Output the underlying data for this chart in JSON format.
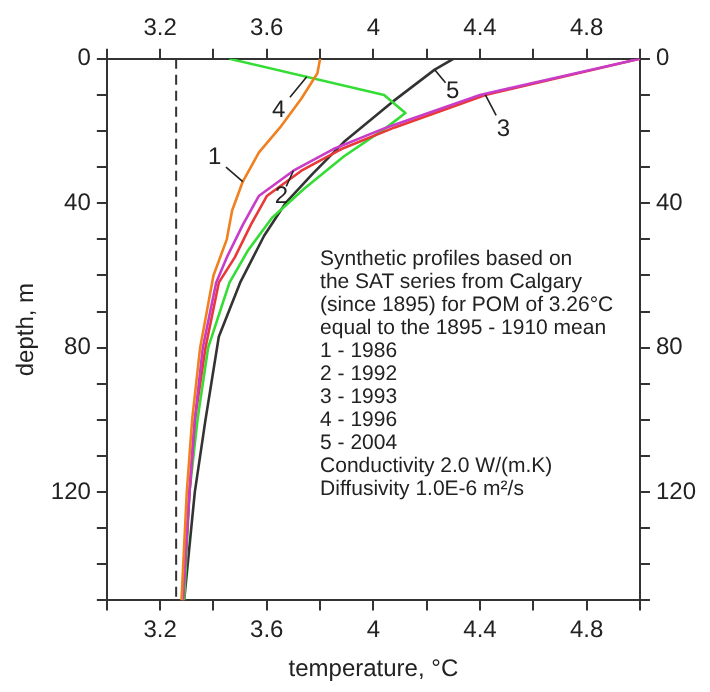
{
  "chart_data": {
    "type": "line",
    "xlabel": "temperature, °C",
    "ylabel": "depth, m",
    "xlim": [
      3.0,
      5.0
    ],
    "xticks": [
      {
        "value": 3.0,
        "label": null
      },
      3.2,
      {
        "value": 3.4,
        "label": null
      },
      3.6,
      {
        "value": 3.8,
        "label": null
      },
      4,
      {
        "value": 4.2,
        "label": null
      },
      4.4,
      {
        "value": 4.6,
        "label": null
      },
      4.8,
      {
        "value": 5.0,
        "label": null
      }
    ],
    "x2lim": [
      3.0,
      5.0
    ],
    "x2ticks": [
      {
        "value": 3.0,
        "label": null
      },
      3.2,
      {
        "value": 3.4,
        "label": null
      },
      3.6,
      {
        "value": 3.8,
        "label": null
      },
      4,
      {
        "value": 4.2,
        "label": null
      },
      4.4,
      {
        "value": 4.6,
        "label": null
      },
      4.8,
      {
        "value": 5.0,
        "label": null
      }
    ],
    "ylim": [
      150,
      0
    ],
    "yticks": [
      0,
      {
        "value": 10,
        "label": null
      },
      {
        "value": 20,
        "label": null
      },
      {
        "value": 30,
        "label": null
      },
      40,
      {
        "value": 50,
        "label": null
      },
      {
        "value": 60,
        "label": null
      },
      {
        "value": 70,
        "label": null
      },
      80,
      {
        "value": 90,
        "label": null
      },
      {
        "value": 100,
        "label": null
      },
      {
        "value": 110,
        "label": null
      },
      120,
      {
        "value": 130,
        "label": null
      },
      {
        "value": 140,
        "label": null
      },
      {
        "value": 150,
        "label": null
      }
    ],
    "y2lim": [
      150,
      0
    ],
    "y2ticks": [
      0,
      {
        "value": 10,
        "label": null
      },
      {
        "value": 20,
        "label": null
      },
      {
        "value": 30,
        "label": null
      },
      40,
      {
        "value": 50,
        "label": null
      },
      {
        "value": 60,
        "label": null
      },
      {
        "value": 70,
        "label": null
      },
      80,
      {
        "value": 90,
        "label": null
      },
      {
        "value": 100,
        "label": null
      },
      {
        "value": 110,
        "label": null
      },
      120,
      {
        "value": 130,
        "label": null
      },
      {
        "value": 140,
        "label": null
      },
      {
        "value": 150,
        "label": null
      }
    ],
    "grid": false,
    "legend": false,
    "marker": "none",
    "line_style": "solid",
    "series": [
      {
        "color": "#f08020",
        "x": [
          3.8,
          3.79,
          3.73,
          3.65,
          3.57,
          3.51,
          3.47,
          3.45,
          3.4,
          3.35,
          3.32,
          3.3,
          3.28
        ],
        "values": [
          0,
          4,
          11,
          19,
          26,
          34,
          42,
          50,
          60,
          80,
          100,
          120,
          150
        ]
      },
      {
        "color": "#c83cc8",
        "x": [
          5.0,
          4.4,
          4.05,
          3.85,
          3.7,
          3.57,
          3.51,
          3.45,
          3.41,
          3.36,
          3.33,
          3.31,
          3.285
        ],
        "values": [
          0,
          10,
          19,
          25,
          31,
          38,
          46,
          55,
          62,
          80,
          100,
          120,
          150
        ]
      },
      {
        "color": "#e83838",
        "x": [
          5.0,
          4.42,
          4.08,
          3.88,
          3.73,
          3.6,
          3.54,
          3.48,
          3.42,
          3.37,
          3.33,
          3.31,
          3.285
        ],
        "values": [
          0,
          10,
          19,
          25,
          31,
          38,
          46,
          55,
          62,
          80,
          100,
          120,
          150
        ]
      },
      {
        "color": "#33dd33",
        "x": [
          3.46,
          4.04,
          4.12,
          4.05,
          3.89,
          3.74,
          3.62,
          3.53,
          3.46,
          3.38,
          3.34,
          3.31,
          3.29
        ],
        "values": [
          0,
          10,
          15,
          19,
          27,
          36,
          44,
          53,
          62,
          80,
          100,
          120,
          150
        ]
      },
      {
        "color": "#333333",
        "x": [
          4.3,
          4.23,
          4.07,
          3.89,
          3.77,
          3.67,
          3.59,
          3.5,
          3.42,
          3.37,
          3.33,
          3.29
        ],
        "values": [
          0,
          3,
          12,
          23,
          32,
          40,
          49,
          62,
          77,
          100,
          120,
          150
        ]
      }
    ],
    "ref_lines": [
      {
        "axis": "x",
        "value": 3.26,
        "color": "#333333",
        "line_style": "dashed"
      }
    ],
    "annotations": [
      {
        "text": "1",
        "x": 3.51,
        "y": 34
      },
      {
        "text": "2",
        "x": 3.7,
        "y": 31
      },
      {
        "text": "3",
        "x": 4.42,
        "y": 10
      },
      {
        "text": "4",
        "x": 3.75,
        "y": 5
      },
      {
        "text": "5",
        "x": 4.23,
        "y": 3
      },
      "Synthetic profiles based on",
      "the SAT series from Calgary",
      "(since 1895) for POM of 3.26°C",
      "equal to the 1895 - 1910 mean",
      "1 - 1986",
      "2 - 1992",
      "3 - 1993",
      "4 - 1996",
      "5 - 2004",
      "Conductivity 2.0 W/(m.K)",
      "Diffusivity 1.0E-6 m²/s"
    ]
  }
}
